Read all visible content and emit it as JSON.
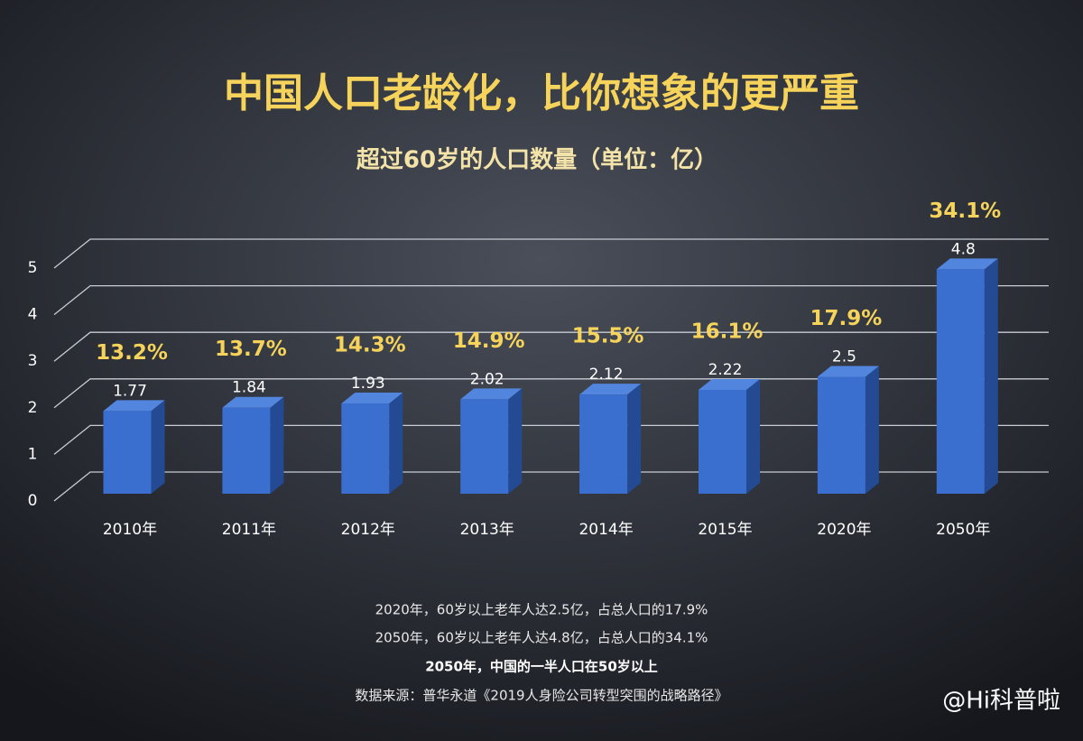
{
  "chart_data": {
    "type": "bar",
    "title": "中国人口老龄化，比你想象的更严重",
    "subtitle": "超过60岁的人口数量（单位：亿）",
    "categories": [
      "2010年",
      "2011年",
      "2012年",
      "2013年",
      "2014年",
      "2015年",
      "2020年",
      "2050年"
    ],
    "values": [
      1.77,
      1.84,
      1.93,
      2.02,
      2.12,
      2.22,
      2.5,
      4.8
    ],
    "percent_labels": [
      "13.2%",
      "13.7%",
      "14.3%",
      "14.9%",
      "15.5%",
      "16.1%",
      "17.9%",
      "34.1%"
    ],
    "color": "#3a6fcf",
    "ylim": [
      0,
      5
    ],
    "yticks": [
      0,
      1,
      2,
      3,
      4,
      5
    ],
    "grid": true
  },
  "notes": [
    "2020年，60岁以上老年人达2.5亿，占总人口的17.9%",
    "2050年，60岁以上老年人达4.8亿，占总人口的34.1%",
    "2050年，中国的一半人口在50岁以上"
  ],
  "source": "数据来源：普华永道《2019人身险公司转型突围的战略路径》",
  "watermark": "@Hi科普啦"
}
